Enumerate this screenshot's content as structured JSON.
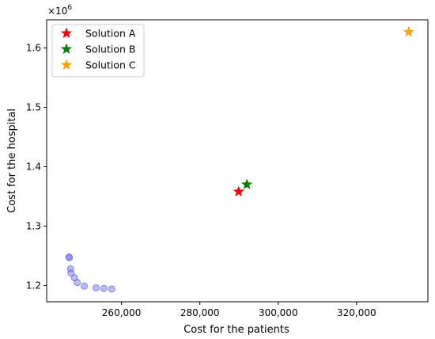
{
  "chart_data": {
    "type": "scatter",
    "xlabel": "Cost for the patients",
    "ylabel": "Cost for the hospital",
    "y_multiplier_label": "×10",
    "y_multiplier_exponent": "6",
    "xlim": [
      240900,
      338200
    ],
    "ylim": [
      1.1725,
      1.6475
    ],
    "x_ticks": [
      {
        "value": 260000,
        "label": "260,000"
      },
      {
        "value": 280000,
        "label": "280,000"
      },
      {
        "value": 300000,
        "label": "300,000"
      },
      {
        "value": 320000,
        "label": "320,000"
      }
    ],
    "y_ticks": [
      {
        "value": 1.2,
        "label": "1.2"
      },
      {
        "value": 1.3,
        "label": "1.3"
      },
      {
        "value": 1.4,
        "label": "1.4"
      },
      {
        "value": 1.5,
        "label": "1.5"
      },
      {
        "value": 1.6,
        "label": "1.6"
      }
    ],
    "grid": false,
    "legend_position": "top-left",
    "pareto_points": {
      "color": "#6a6ae8",
      "points": [
        {
          "x": 246600,
          "y": 1.248
        },
        {
          "x": 246700,
          "y": 1.247
        },
        {
          "x": 247000,
          "y": 1.228
        },
        {
          "x": 247100,
          "y": 1.221
        },
        {
          "x": 248000,
          "y": 1.213
        },
        {
          "x": 248700,
          "y": 1.205
        },
        {
          "x": 250500,
          "y": 1.199
        },
        {
          "x": 253500,
          "y": 1.196
        },
        {
          "x": 255500,
          "y": 1.195
        },
        {
          "x": 257500,
          "y": 1.194
        }
      ]
    },
    "series": [
      {
        "name": "Solution A",
        "color": "#ff0000",
        "x": 289900,
        "y": 1.358
      },
      {
        "name": "Solution B",
        "color": "#008000",
        "x": 292000,
        "y": 1.37
      },
      {
        "name": "Solution C",
        "color": "#ffa500",
        "x": 333300,
        "y": 1.627
      }
    ]
  }
}
